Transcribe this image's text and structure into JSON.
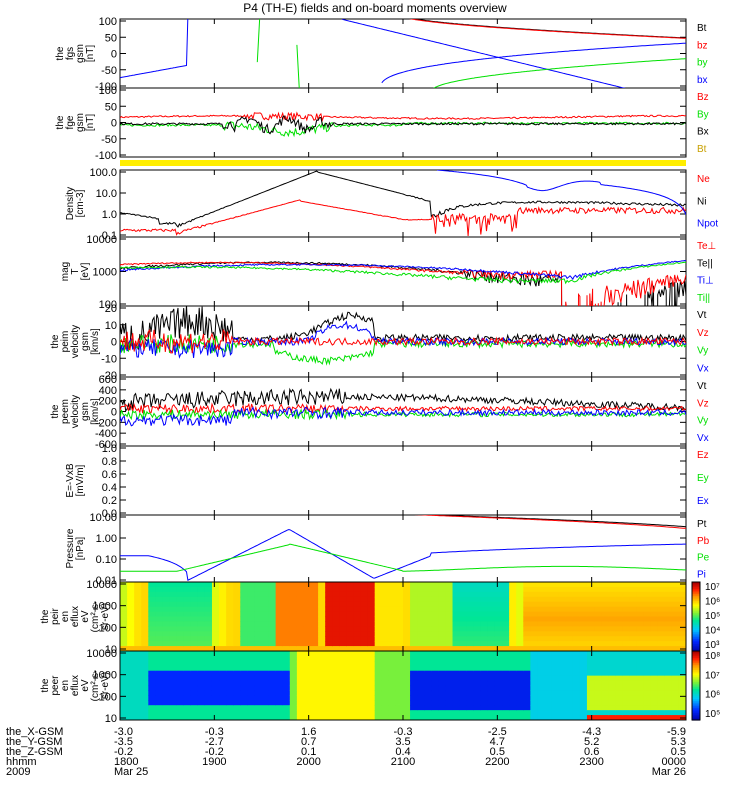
{
  "title": "P4 (TH-E) fields and on-board moments overview",
  "colors": {
    "black": "#000000",
    "red": "#ff0000",
    "green": "#00e000",
    "blue": "#0000ff",
    "gold": "#c8a000",
    "yellow": "#ffee00"
  },
  "chart_data": [
    {
      "type": "line",
      "id": "fgs",
      "ylabel": [
        "the",
        "fgs",
        "gsm",
        "[nT]"
      ],
      "ylim": [
        -100,
        100
      ],
      "yticks": [
        "100",
        "50",
        "0",
        "-50",
        "-100"
      ],
      "legend": [
        {
          "name": "Bt",
          "color": "black"
        },
        {
          "name": "bz",
          "color": "red"
        },
        {
          "name": "by",
          "color": "green"
        },
        {
          "name": "bx",
          "color": "blue"
        }
      ]
    },
    {
      "type": "line",
      "id": "fge",
      "ylabel": [
        "the",
        "fge",
        "gsm",
        "[nT]"
      ],
      "ylim": [
        -130,
        130
      ],
      "yticks": [
        "100",
        "50",
        "0",
        "-50",
        "-100"
      ],
      "legend": [
        {
          "name": "Bz",
          "color": "red"
        },
        {
          "name": "By",
          "color": "green"
        },
        {
          "name": "Bx",
          "color": "black"
        },
        {
          "name": "Bt",
          "color": "gold"
        }
      ]
    },
    {
      "type": "line",
      "id": "density",
      "ylabel": [
        "Density",
        "[cm-3]"
      ],
      "yscale": "log",
      "ylim": [
        0.1,
        100
      ],
      "yticks": [
        "100.0",
        "10.0",
        "1.0",
        "0.1"
      ],
      "legend": [
        {
          "name": "Ne",
          "color": "red"
        },
        {
          "name": "Ni",
          "color": "black"
        },
        {
          "name": "Npot",
          "color": "blue"
        }
      ]
    },
    {
      "type": "line",
      "id": "temp",
      "ylabel": [
        "mag",
        "T",
        "[eV]"
      ],
      "yscale": "log",
      "ylim": [
        40,
        10000
      ],
      "yticks": [
        "10000",
        "1000",
        "100"
      ],
      "legend": [
        {
          "name": "Te⊥",
          "color": "red"
        },
        {
          "name": "Te||",
          "color": "black"
        },
        {
          "name": "Ti⊥",
          "color": "blue"
        },
        {
          "name": "Ti||",
          "color": "green"
        }
      ]
    },
    {
      "type": "line",
      "id": "peim",
      "ylabel": [
        "the",
        "peim",
        "velocity",
        "gsm",
        "[km/s]"
      ],
      "ylim": [
        -30,
        30
      ],
      "yticks": [
        "20",
        "10",
        "0",
        "-10",
        "-20"
      ],
      "legend": [
        {
          "name": "Vt",
          "color": "black"
        },
        {
          "name": "Vz",
          "color": "red"
        },
        {
          "name": "Vy",
          "color": "green"
        },
        {
          "name": "Vx",
          "color": "blue"
        }
      ]
    },
    {
      "type": "line",
      "id": "peem",
      "ylabel": [
        "the",
        "peem",
        "velocity",
        "gsm",
        "[km/s]"
      ],
      "ylim": [
        -600,
        600
      ],
      "yticks": [
        "600",
        "400",
        "200",
        "0",
        "-200",
        "-400",
        "-600"
      ],
      "legend": [
        {
          "name": "Vt",
          "color": "black"
        },
        {
          "name": "Vz",
          "color": "red"
        },
        {
          "name": "Vy",
          "color": "green"
        },
        {
          "name": "Vx",
          "color": "blue"
        }
      ]
    },
    {
      "type": "line",
      "id": "efield",
      "ylabel": [
        "E=-VxB",
        "[mV/m]"
      ],
      "ylim": [
        0,
        1
      ],
      "yticks": [
        "1.0",
        "0.8",
        "0.6",
        "0.4",
        "0.2",
        "0.0"
      ],
      "legend": [
        {
          "name": "Ez",
          "color": "red"
        },
        {
          "name": "Ey",
          "color": "green"
        },
        {
          "name": "Ex",
          "color": "blue"
        }
      ]
    },
    {
      "type": "line",
      "id": "pressure",
      "ylabel": [
        "Pressure",
        "[nPa]"
      ],
      "yscale": "log",
      "ylim": [
        0.01,
        10
      ],
      "yticks": [
        "10.00",
        "1.00",
        "0.10",
        "0.01"
      ],
      "legend": [
        {
          "name": "Pt",
          "color": "black"
        },
        {
          "name": "Pb",
          "color": "red"
        },
        {
          "name": "Pe",
          "color": "green"
        },
        {
          "name": "Pi",
          "color": "blue"
        }
      ]
    },
    {
      "type": "heatmap",
      "id": "peir",
      "ylabel": [
        "the",
        "peir",
        "en",
        "eflux",
        "eV",
        "(cm²-s-",
        "sr-eV)"
      ],
      "yscale": "log",
      "yticks": [
        "10000",
        "1000",
        "100",
        "10"
      ],
      "colorbar": [
        "10⁷",
        "10⁶",
        "10⁵",
        "10⁴",
        "10³"
      ]
    },
    {
      "type": "heatmap",
      "id": "peer",
      "ylabel": [
        "the",
        "peer",
        "en",
        "eflux",
        "eV",
        "(cm²-s-",
        "sr-eV)"
      ],
      "yscale": "log",
      "yticks": [
        "10000",
        "1000",
        "100",
        "10"
      ],
      "colorbar": [
        "10⁸",
        "10⁷",
        "10⁶",
        "10⁵"
      ]
    }
  ],
  "xaxis": {
    "rows": [
      {
        "label": "the_X-GSM",
        "values": [
          "-3.0",
          "-0.3",
          "1.6",
          "-0.3",
          "-2.5",
          "-4.3",
          "-5.9"
        ]
      },
      {
        "label": "the_Y-GSM",
        "values": [
          "-3.5",
          "-2.7",
          "0.7",
          "3.5",
          "4.7",
          "5.2",
          "5.3"
        ]
      },
      {
        "label": "the_Z-GSM",
        "values": [
          "-0.2",
          "-0.2",
          "0.1",
          "0.4",
          "0.5",
          "0.6",
          "0.5"
        ]
      },
      {
        "label": "hhmm",
        "values": [
          "1800",
          "1900",
          "2000",
          "2100",
          "2200",
          "2300",
          "0000"
        ]
      },
      {
        "label": "2009",
        "values": [
          "Mar 25",
          "",
          "",
          "",
          "",
          "",
          "Mar 26"
        ]
      }
    ]
  }
}
